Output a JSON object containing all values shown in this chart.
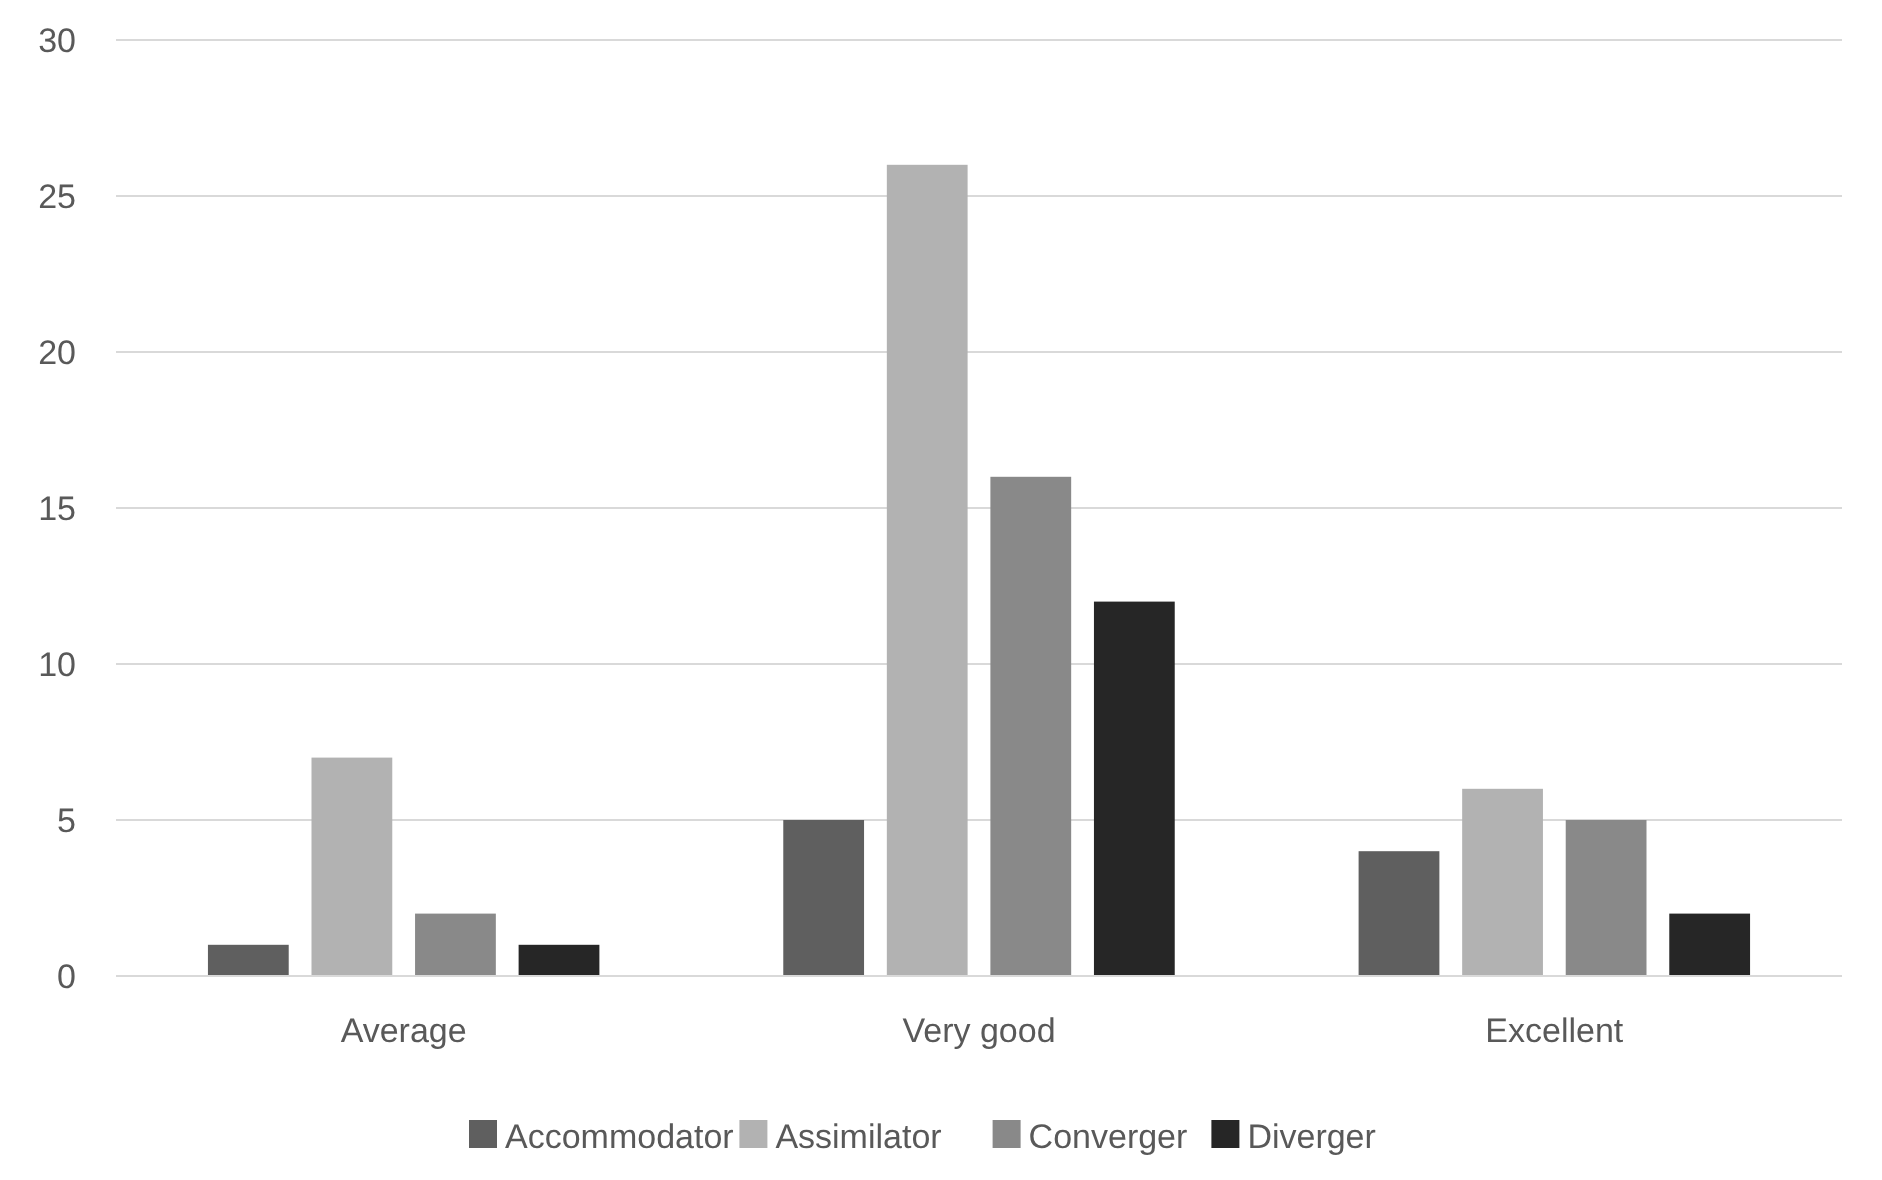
{
  "chart_data": {
    "type": "bar",
    "categories": [
      "Average",
      "Very good",
      "Excellent"
    ],
    "series": [
      {
        "name": "Accommodator",
        "color": "#5f5f5f",
        "values": [
          1,
          5,
          4
        ]
      },
      {
        "name": "Assimilator",
        "color": "#b2b2b2",
        "values": [
          7,
          26,
          6
        ]
      },
      {
        "name": "Converger",
        "color": "#898989",
        "values": [
          2,
          16,
          5
        ]
      },
      {
        "name": "Diverger",
        "color": "#262626",
        "values": [
          1,
          12,
          2
        ]
      }
    ],
    "ylim": [
      0,
      30
    ],
    "yticks": [
      0,
      5,
      10,
      15,
      20,
      25,
      30
    ],
    "grid": "y",
    "legend": "bottom"
  }
}
